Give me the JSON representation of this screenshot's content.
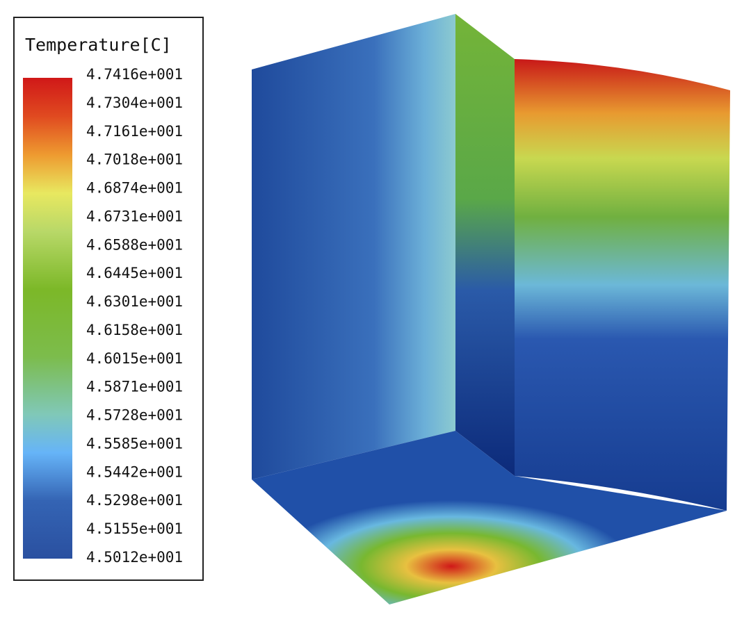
{
  "legend": {
    "title": "Temperature[C]",
    "labels": [
      "4.7416e+001",
      "4.7304e+001",
      "4.7161e+001",
      "4.7018e+001",
      "4.6874e+001",
      "4.6731e+001",
      "4.6588e+001",
      "4.6445e+001",
      "4.6301e+001",
      "4.6158e+001",
      "4.6015e+001",
      "4.5871e+001",
      "4.5728e+001",
      "4.5585e+001",
      "4.5442e+001",
      "4.5298e+001",
      "4.5155e+001",
      "4.5012e+001"
    ]
  }
}
